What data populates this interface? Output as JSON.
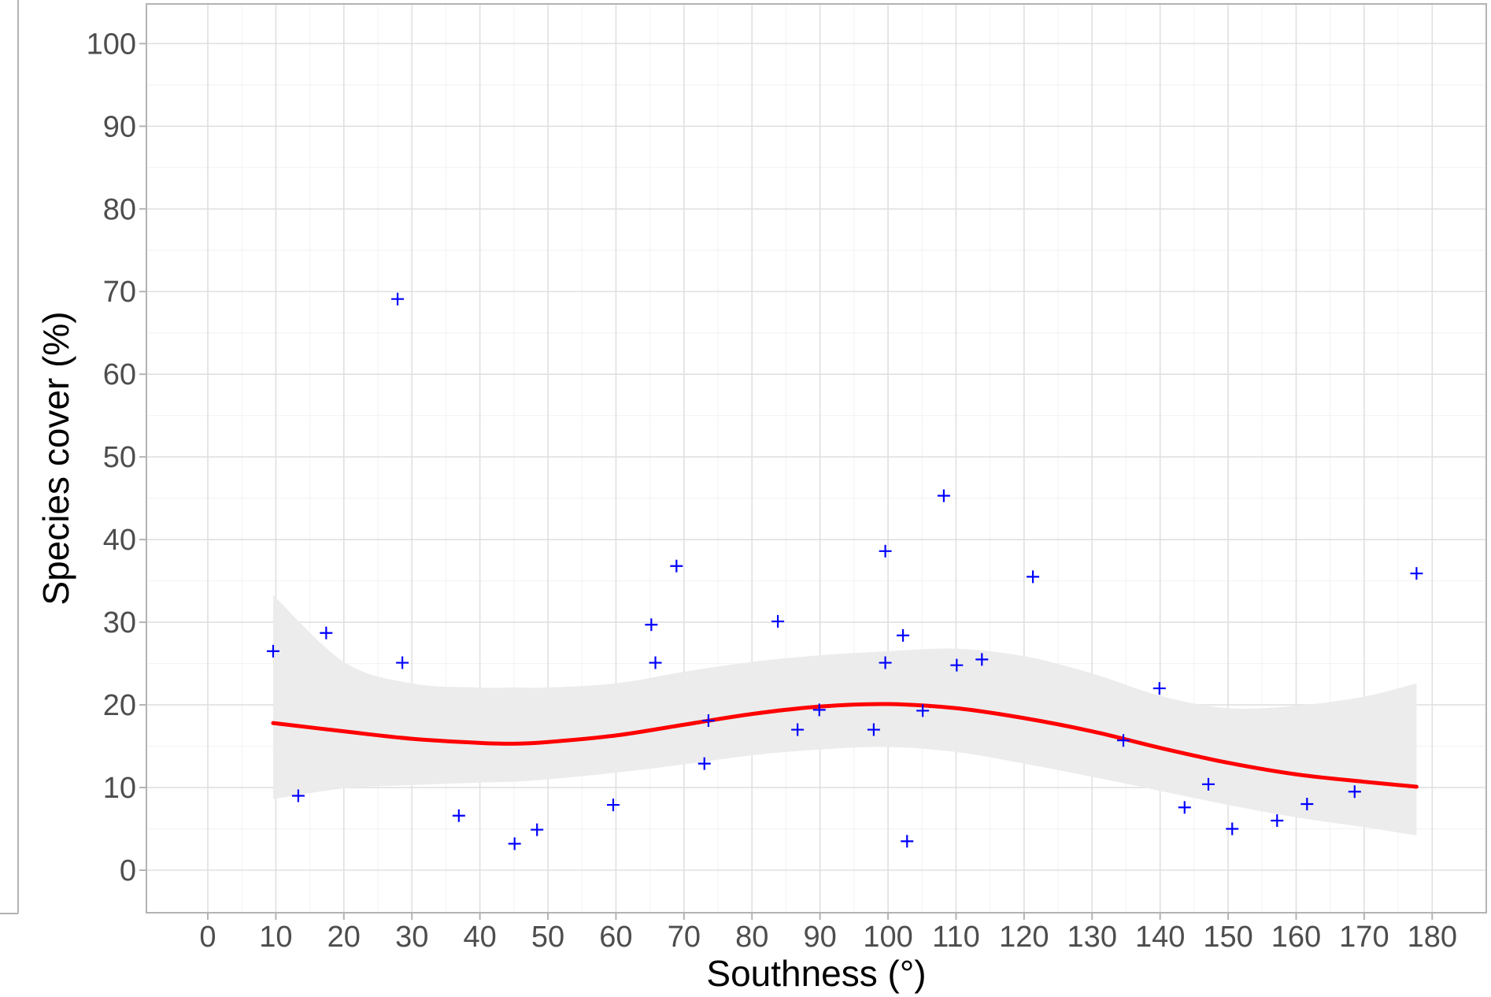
{
  "chart_data": {
    "type": "scatter",
    "xlabel": "Southness (°)",
    "ylabel": "Species cover (%)",
    "xlim": [
      -9,
      188
    ],
    "ylim": [
      -5,
      105
    ],
    "x_ticks": [
      0,
      10,
      20,
      30,
      40,
      50,
      60,
      70,
      80,
      90,
      100,
      110,
      120,
      130,
      140,
      150,
      160,
      170,
      180
    ],
    "y_ticks": [
      0,
      10,
      20,
      30,
      40,
      50,
      60,
      70,
      80,
      90,
      100
    ],
    "x_tick_labels": [
      "0",
      "10",
      "20",
      "30",
      "40",
      "50",
      "60",
      "70",
      "80",
      "90",
      "100",
      "110",
      "120",
      "130",
      "140",
      "150",
      "160",
      "170",
      "180"
    ],
    "y_tick_labels": [
      "0",
      "10",
      "20",
      "30",
      "40",
      "50",
      "60",
      "70",
      "80",
      "90",
      "100"
    ],
    "grid": true,
    "points": {
      "marker": "+",
      "color": "#0000ff",
      "x": [
        9.6,
        13.3,
        17.4,
        27.9,
        28.6,
        36.9,
        45.1,
        48.4,
        59.6,
        65.2,
        65.8,
        68.9,
        73.0,
        73.6,
        83.8,
        86.7,
        89.9,
        97.9,
        99.6,
        99.6,
        102.2,
        102.8,
        105.1,
        108.2,
        110.1,
        113.8,
        121.3,
        134.6,
        139.9,
        143.6,
        147.1,
        150.6,
        157.2,
        161.6,
        168.6,
        177.7
      ],
      "y": [
        26.5,
        9.0,
        28.7,
        69.1,
        25.1,
        6.6,
        3.2,
        4.9,
        7.9,
        29.7,
        25.1,
        36.8,
        12.9,
        18.1,
        30.1,
        17.0,
        19.4,
        17.0,
        38.6,
        25.1,
        28.4,
        3.5,
        19.3,
        45.3,
        24.8,
        25.5,
        35.5,
        15.7,
        22.0,
        7.6,
        10.4,
        5.0,
        6.0,
        8.0,
        9.5,
        35.9
      ]
    },
    "smooth": {
      "color": "#ff0000",
      "band_color": "#ebebeb",
      "x": [
        9.6,
        20,
        30,
        40,
        45,
        50,
        60,
        70,
        80,
        90,
        100,
        110,
        120,
        130,
        140,
        150,
        160,
        170,
        177.7
      ],
      "y": [
        17.8,
        16.8,
        15.9,
        15.4,
        15.3,
        15.5,
        16.3,
        17.6,
        18.9,
        19.8,
        20.1,
        19.6,
        18.4,
        16.8,
        14.8,
        13.0,
        11.6,
        10.7,
        10.1
      ],
      "lower": [
        8.6,
        9.9,
        10.3,
        10.6,
        10.7,
        11.0,
        11.8,
        12.8,
        13.9,
        14.6,
        14.9,
        14.3,
        12.9,
        11.3,
        9.6,
        7.9,
        6.4,
        5.2,
        4.2
      ],
      "upper": [
        33.3,
        25.2,
        22.6,
        22.1,
        22.1,
        22.1,
        22.6,
        24.0,
        25.2,
        26.0,
        26.5,
        26.8,
        25.9,
        23.8,
        21.1,
        19.6,
        19.9,
        21.0,
        22.6
      ]
    }
  }
}
